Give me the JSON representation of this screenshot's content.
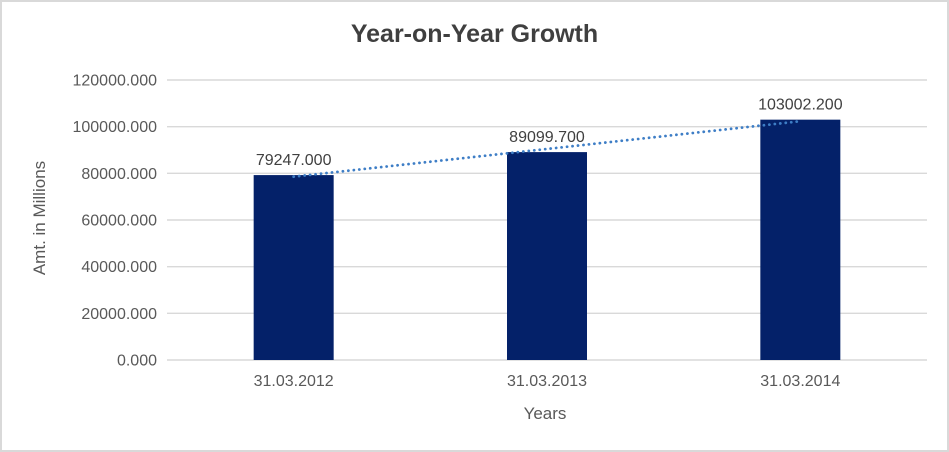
{
  "chart": {
    "title": "Year-on-Year Growth"
  },
  "chart_data": {
    "type": "bar",
    "title": "Year-on-Year Growth",
    "categories": [
      "31.03.2012",
      "31.03.2013",
      "31.03.2014"
    ],
    "values": [
      79247.0,
      89099.7,
      103002.2
    ],
    "data_labels": [
      "79247.000",
      "89099.700",
      "103002.200"
    ],
    "xlabel": "Years",
    "ylabel": "Amt. in Millions",
    "ylim": [
      0,
      120000
    ],
    "ytick_step": 20000,
    "ytick_labels": [
      "0.000",
      "20000.000",
      "40000.000",
      "60000.000",
      "80000.000",
      "100000.000",
      "120000.000"
    ],
    "grid": true,
    "legend": "none",
    "trendline": {
      "type": "linear",
      "style": "dotted",
      "color": "#3e7ec6"
    },
    "colors": {
      "bar": "#042169",
      "gridline": "#d9d9d9",
      "axis_text": "#595959",
      "data_label_text": "#404040",
      "title_text": "#3f3f3f",
      "border": "#d9d9d9",
      "background": "#ffffff"
    }
  }
}
